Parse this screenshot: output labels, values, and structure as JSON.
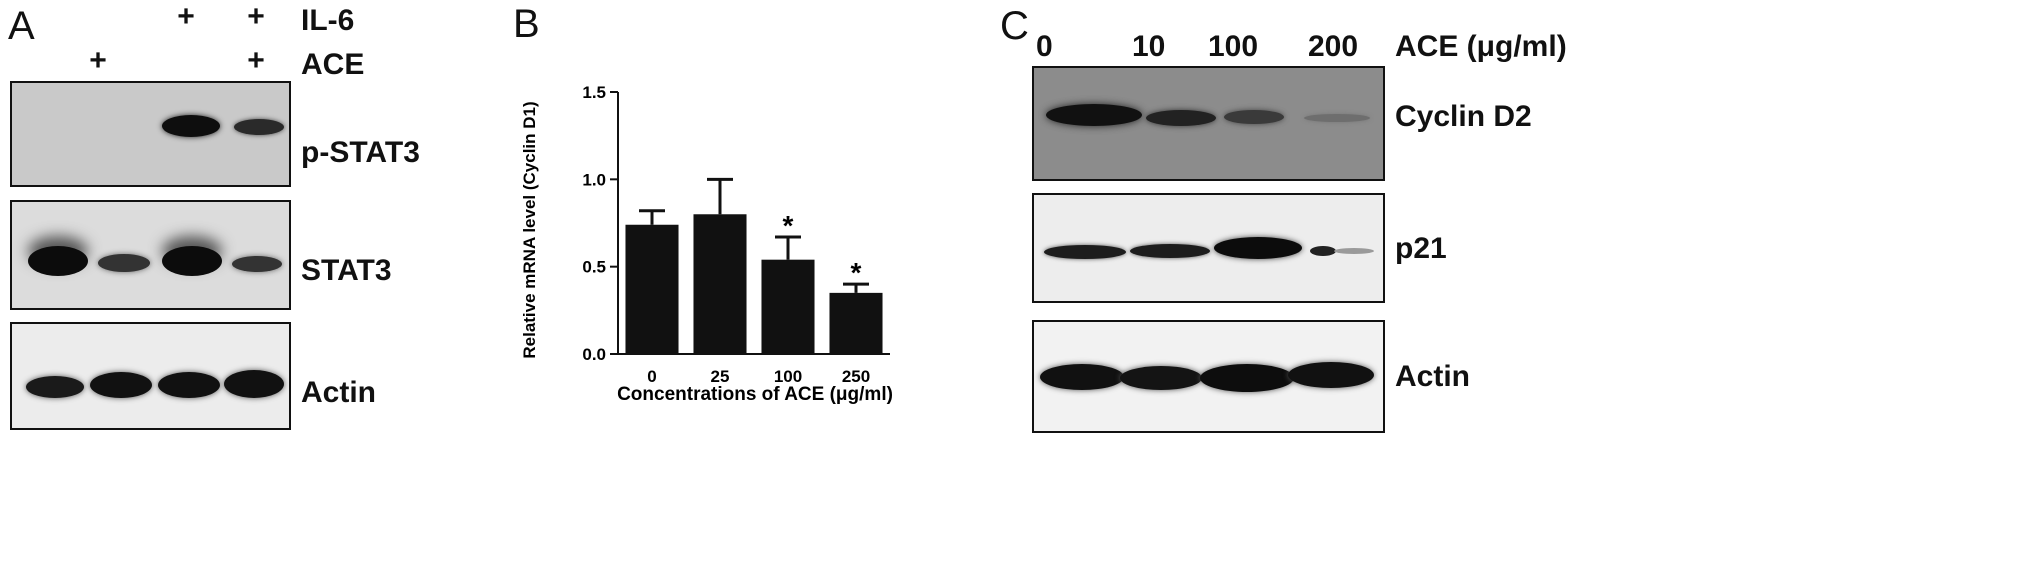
{
  "panel_a": {
    "letter": "A",
    "treatments": [
      {
        "name": "IL-6",
        "marks": [
          "",
          "",
          "+",
          "+"
        ]
      },
      {
        "name": "ACE",
        "marks": [
          "",
          "+",
          "",
          "+"
        ]
      }
    ],
    "blots": [
      {
        "label": "p-STAT3",
        "intensity": [
          0.0,
          0.0,
          0.95,
          0.6
        ]
      },
      {
        "label": "STAT3",
        "intensity": [
          0.95,
          0.6,
          0.95,
          0.55
        ]
      },
      {
        "label": "Actin",
        "intensity": [
          0.85,
          0.9,
          0.9,
          0.9
        ]
      }
    ]
  },
  "panel_b": {
    "letter": "B",
    "chart_data": {
      "type": "bar",
      "categories": [
        "0",
        "25",
        "100",
        "250"
      ],
      "values": [
        0.74,
        0.8,
        0.54,
        0.35
      ],
      "errors": [
        0.08,
        0.2,
        0.13,
        0.05
      ],
      "significance": [
        "",
        "",
        "*",
        "*"
      ],
      "ylim": [
        0.0,
        1.5
      ],
      "yticks": [
        "0.0",
        "0.5",
        "1.0",
        "1.5"
      ],
      "xlabel": "Concentrations of ACE (μg/ml)",
      "ylabel": "Relative mRNA level (Cyclin D1)",
      "bar_color": "#111111"
    }
  },
  "panel_c": {
    "letter": "C",
    "header": "ACE (μg/ml)",
    "concentrations": [
      "0",
      "10",
      "100",
      "200"
    ],
    "blots": [
      {
        "label": "Cyclin D2",
        "intensity": [
          0.9,
          0.75,
          0.6,
          0.15
        ]
      },
      {
        "label": "p21",
        "intensity": [
          0.75,
          0.75,
          0.95,
          0.35
        ]
      },
      {
        "label": "Actin",
        "intensity": [
          0.9,
          0.85,
          0.9,
          0.9
        ]
      }
    ]
  }
}
